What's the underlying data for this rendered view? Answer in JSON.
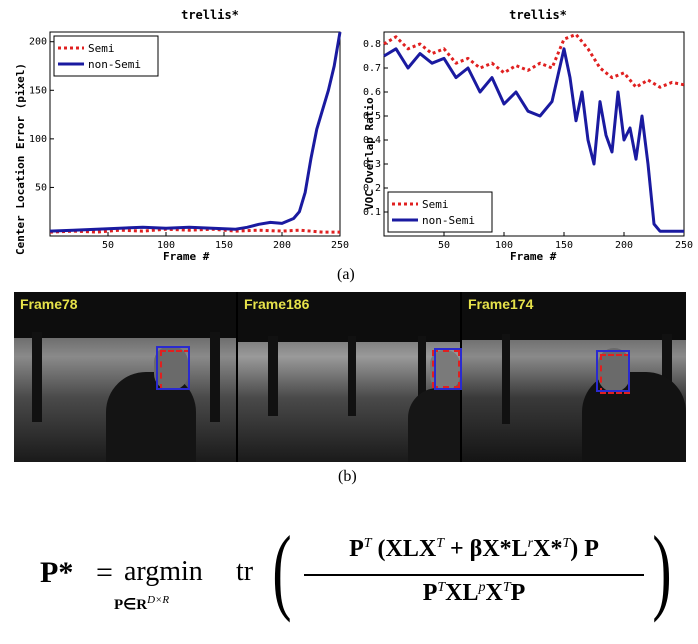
{
  "chart_data": [
    {
      "type": "line",
      "title": "trellis*",
      "xlabel": "Frame #",
      "ylabel": "Center Location Error (pixel)",
      "xlim": [
        0,
        250
      ],
      "ylim": [
        0,
        210
      ],
      "xticks": [
        "50",
        "100",
        "150",
        "200",
        "250"
      ],
      "yticks": [
        "50",
        "100",
        "150",
        "200"
      ],
      "legend_position": "top-left",
      "series": [
        {
          "name": "Semi",
          "color": "#e02020",
          "dash": true,
          "x": [
            0,
            20,
            40,
            60,
            80,
            100,
            120,
            140,
            160,
            180,
            200,
            215,
            225,
            235,
            245,
            250
          ],
          "y": [
            4,
            5,
            4,
            6,
            5,
            7,
            6,
            7,
            5,
            6,
            5,
            6,
            5,
            4,
            4,
            4
          ]
        },
        {
          "name": "non-Semi",
          "color": "#1a1aa0",
          "dash": false,
          "x": [
            0,
            20,
            40,
            60,
            80,
            100,
            120,
            140,
            160,
            170,
            180,
            190,
            200,
            210,
            215,
            220,
            225,
            230,
            235,
            240,
            245,
            250
          ],
          "y": [
            5,
            6,
            7,
            8,
            9,
            8,
            9,
            8,
            7,
            9,
            12,
            14,
            13,
            18,
            25,
            45,
            80,
            110,
            130,
            150,
            175,
            210
          ]
        }
      ]
    },
    {
      "type": "line",
      "title": "trellis*",
      "xlabel": "Frame #",
      "ylabel": "VOC Overlap Ratio",
      "xlim": [
        0,
        250
      ],
      "ylim": [
        0,
        0.85
      ],
      "xticks": [
        "50",
        "100",
        "150",
        "200",
        "250"
      ],
      "yticks": [
        "0.1",
        "0.2",
        "0.3",
        "0.4",
        "0.5",
        "0.6",
        "0.7",
        "0.8"
      ],
      "legend_position": "bottom-left",
      "series": [
        {
          "name": "Semi",
          "color": "#e02020",
          "dash": true,
          "x": [
            0,
            10,
            20,
            30,
            40,
            50,
            60,
            70,
            80,
            90,
            100,
            110,
            120,
            130,
            140,
            150,
            160,
            170,
            180,
            190,
            200,
            210,
            220,
            230,
            240,
            250
          ],
          "y": [
            0.8,
            0.83,
            0.78,
            0.8,
            0.76,
            0.78,
            0.72,
            0.74,
            0.7,
            0.72,
            0.68,
            0.71,
            0.69,
            0.72,
            0.7,
            0.82,
            0.84,
            0.78,
            0.7,
            0.66,
            0.68,
            0.62,
            0.65,
            0.62,
            0.64,
            0.63
          ]
        },
        {
          "name": "non-Semi",
          "color": "#1a1aa0",
          "dash": false,
          "x": [
            0,
            10,
            20,
            30,
            40,
            50,
            60,
            70,
            80,
            90,
            100,
            110,
            120,
            130,
            140,
            150,
            155,
            160,
            165,
            170,
            175,
            180,
            185,
            190,
            195,
            200,
            205,
            210,
            215,
            220,
            225,
            230,
            240,
            250
          ],
          "y": [
            0.75,
            0.78,
            0.7,
            0.76,
            0.72,
            0.74,
            0.66,
            0.7,
            0.6,
            0.66,
            0.55,
            0.6,
            0.52,
            0.5,
            0.56,
            0.78,
            0.66,
            0.48,
            0.6,
            0.4,
            0.3,
            0.56,
            0.42,
            0.35,
            0.6,
            0.4,
            0.45,
            0.32,
            0.5,
            0.3,
            0.05,
            0.02,
            0.02,
            0.02
          ]
        }
      ]
    }
  ],
  "captions": {
    "a": "(a)",
    "b": "(b)"
  },
  "frames": [
    {
      "label": "Frame78"
    },
    {
      "label": "Frame186"
    },
    {
      "label": "Frame174"
    }
  ],
  "equation": {
    "lhs": "P*",
    "eq": "=",
    "op": "argmin",
    "subscript": "P∈R",
    "subscript_sup": "D×R",
    "tr": "tr",
    "numerator_pre": "P",
    "numerator_sup": "T",
    "numerator_mid": "(XLX",
    "numerator_mid_sup": "T",
    "numerator_rest": " + βX*L",
    "numerator_r": "r",
    "numerator_end": "X*",
    "numerator_end_sup": "T",
    "numerator_tail": ") P",
    "denominator": "P",
    "denominator_sup": "T",
    "denominator_mid": "XL",
    "denominator_p": "p",
    "denominator_x": "X",
    "denominator_x_sup": "T",
    "denominator_tail": "P"
  }
}
